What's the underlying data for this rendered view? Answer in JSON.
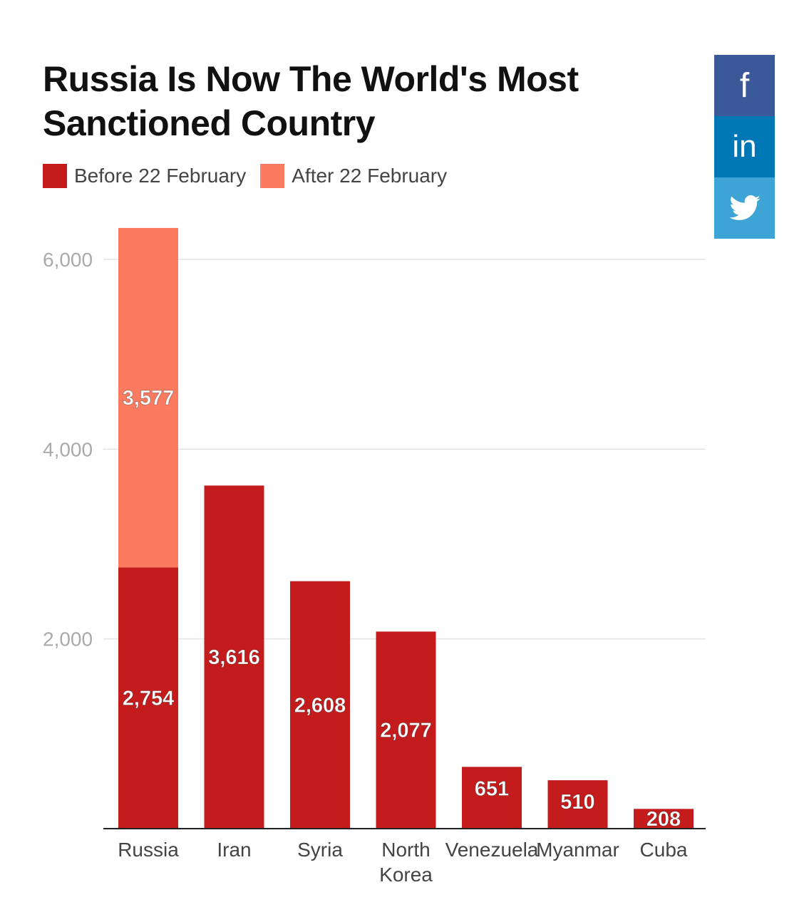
{
  "chart_data": {
    "type": "bar",
    "stacked": true,
    "title_lines": [
      "Russia Is Now The World's Most",
      "Sanctioned Country"
    ],
    "legend": [
      {
        "name": "Before 22 February",
        "color": "#c41c1c"
      },
      {
        "name": "After 22 February",
        "color": "#fa7b5f"
      }
    ],
    "categories": [
      [
        "Russia"
      ],
      [
        "Iran"
      ],
      [
        "Syria"
      ],
      [
        "North",
        "Korea"
      ],
      [
        "Venezuela"
      ],
      [
        "Myanmar"
      ],
      [
        "Cuba"
      ]
    ],
    "series": [
      {
        "name": "Before 22 February",
        "color": "#c41c1c",
        "values": [
          2754,
          3616,
          2608,
          2077,
          651,
          510,
          208
        ],
        "labels": [
          "2,754",
          "3,616",
          "2,608",
          "2,077",
          "651",
          "510",
          "208"
        ]
      },
      {
        "name": "After 22 February",
        "color": "#fa7b5f",
        "values": [
          3577,
          0,
          0,
          0,
          0,
          0,
          0
        ],
        "labels": [
          "3,577",
          "",
          "",
          "",
          "",
          "",
          ""
        ]
      }
    ],
    "y_ticks": [
      {
        "value": 2000,
        "label": "2,000"
      },
      {
        "value": 4000,
        "label": "4,000"
      },
      {
        "value": 6000,
        "label": "6,000"
      }
    ],
    "ylim": [
      0,
      6000
    ],
    "grid": true,
    "legend_position": "top-left"
  },
  "share": [
    {
      "name": "facebook",
      "color": "#3b5998",
      "icon": "facebook-icon"
    },
    {
      "name": "linkedin",
      "color": "#0077b5",
      "icon": "linkedin-icon"
    },
    {
      "name": "twitter",
      "color": "#3ea3d5",
      "icon": "twitter-icon"
    }
  ]
}
